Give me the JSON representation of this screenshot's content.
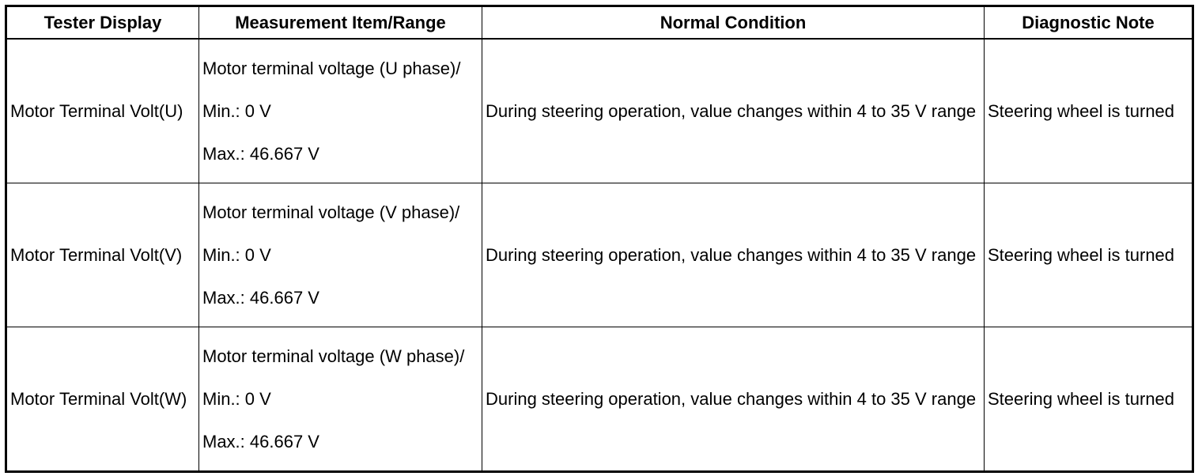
{
  "table": {
    "headers": [
      "Tester Display",
      "Measurement Item/Range",
      "Normal Condition",
      "Diagnostic Note"
    ],
    "rows": [
      {
        "display": "Motor Terminal Volt(U)",
        "measurement": "Motor terminal voltage (U phase)/",
        "min": "Min.: 0 V",
        "max": "Max.: 46.667 V",
        "condition": "During steering operation, value changes within 4 to 35 V range",
        "note": "Steering wheel is turned"
      },
      {
        "display": "Motor Terminal Volt(V)",
        "measurement": "Motor terminal voltage (V phase)/",
        "min": "Min.: 0 V",
        "max": "Max.: 46.667 V",
        "condition": "During steering operation, value changes within 4 to 35 V range",
        "note": "Steering wheel is turned"
      },
      {
        "display": "Motor Terminal Volt(W)",
        "measurement": "Motor terminal voltage (W phase)/",
        "min": "Min.: 0 V",
        "max": "Max.: 46.667 V",
        "condition": "During steering operation, value changes within 4 to 35 V range",
        "note": "Steering wheel is turned"
      }
    ]
  }
}
